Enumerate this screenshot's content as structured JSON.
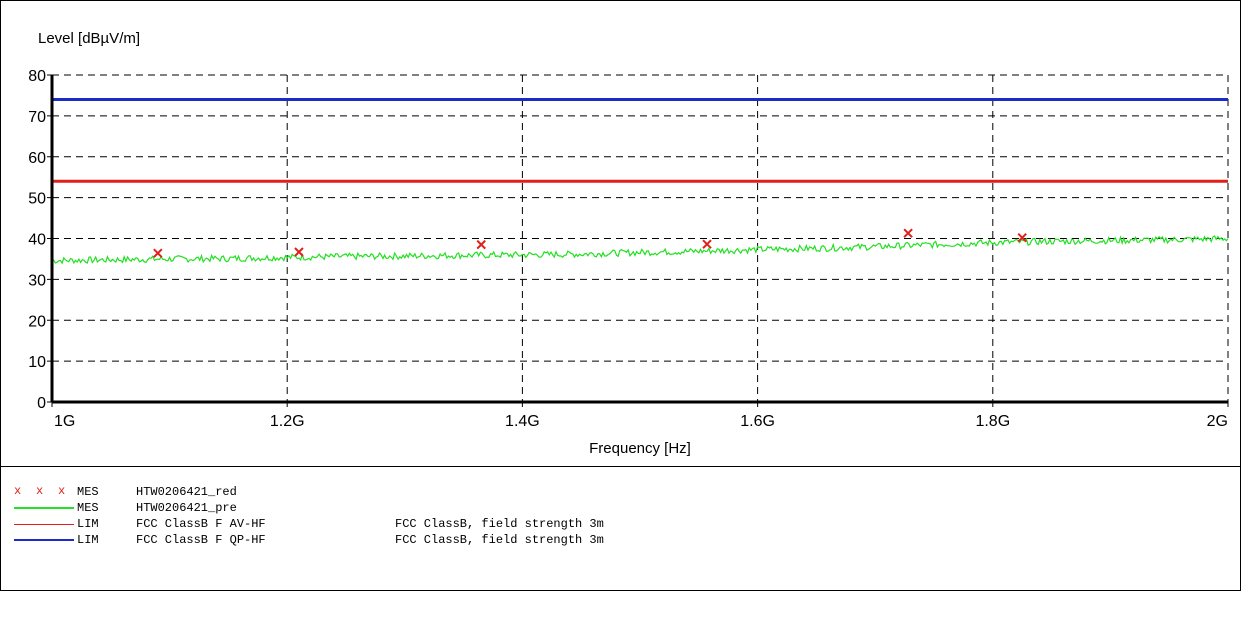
{
  "chart_data": {
    "type": "line",
    "ylabel": "Level [dBµV/m]",
    "xlabel": "Frequency [Hz]",
    "xlim": [
      1000000000,
      2000000000
    ],
    "ylim": [
      0,
      80
    ],
    "grid": true,
    "x_ticks": [
      {
        "value": 1000000000,
        "label": "1G"
      },
      {
        "value": 1200000000,
        "label": "1.2G"
      },
      {
        "value": 1400000000,
        "label": "1.4G"
      },
      {
        "value": 1600000000,
        "label": "1.6G"
      },
      {
        "value": 1800000000,
        "label": "1.8G"
      },
      {
        "value": 2000000000,
        "label": "2G"
      }
    ],
    "y_ticks": [
      0,
      10,
      20,
      30,
      40,
      50,
      60,
      70,
      80
    ],
    "limits": [
      {
        "name": "FCC ClassB F AV-HF",
        "value": 54,
        "color": "#e0201a"
      },
      {
        "name": "FCC ClassB F QP-HF",
        "value": 74,
        "color": "#1a2bc8"
      }
    ],
    "markers": {
      "name": "HTW0206421_red",
      "color": "#e0201a",
      "points": [
        {
          "x": 1090000000,
          "y": 36.4
        },
        {
          "x": 1210000000,
          "y": 36.7
        },
        {
          "x": 1365000000,
          "y": 38.5
        },
        {
          "x": 1557000000,
          "y": 38.6
        },
        {
          "x": 1728000000,
          "y": 41.3
        },
        {
          "x": 1825000000,
          "y": 40.2
        }
      ]
    },
    "trace": {
      "name": "HTW0206421_pre",
      "color": "#22e022",
      "x": [
        1000000000,
        1050000000,
        1100000000,
        1150000000,
        1200000000,
        1250000000,
        1300000000,
        1350000000,
        1400000000,
        1450000000,
        1500000000,
        1550000000,
        1600000000,
        1650000000,
        1700000000,
        1750000000,
        1800000000,
        1850000000,
        1900000000,
        1950000000,
        2000000000
      ],
      "y": [
        34.6,
        34.8,
        35.0,
        35.1,
        35.4,
        35.6,
        35.7,
        35.9,
        36.0,
        36.2,
        36.6,
        36.9,
        37.3,
        37.6,
        38.0,
        38.5,
        39.0,
        39.3,
        39.5,
        39.7,
        40.0
      ]
    }
  },
  "legend": [
    {
      "symbol": "cross",
      "color": "#e0201a",
      "type": "MES",
      "name": "HTW0206421_red",
      "desc": ""
    },
    {
      "symbol": "line",
      "color": "#22e022",
      "type": "MES",
      "name": "HTW0206421_pre",
      "desc": ""
    },
    {
      "symbol": "line",
      "color": "#e0201a",
      "type": "LIM",
      "name": "FCC ClassB F AV-HF",
      "desc": "FCC ClassB, field strength 3m"
    },
    {
      "symbol": "line",
      "color": "#1a2bc8",
      "type": "LIM",
      "name": "FCC ClassB F QP-HF",
      "desc": "FCC ClassB, field strength 3m"
    }
  ]
}
